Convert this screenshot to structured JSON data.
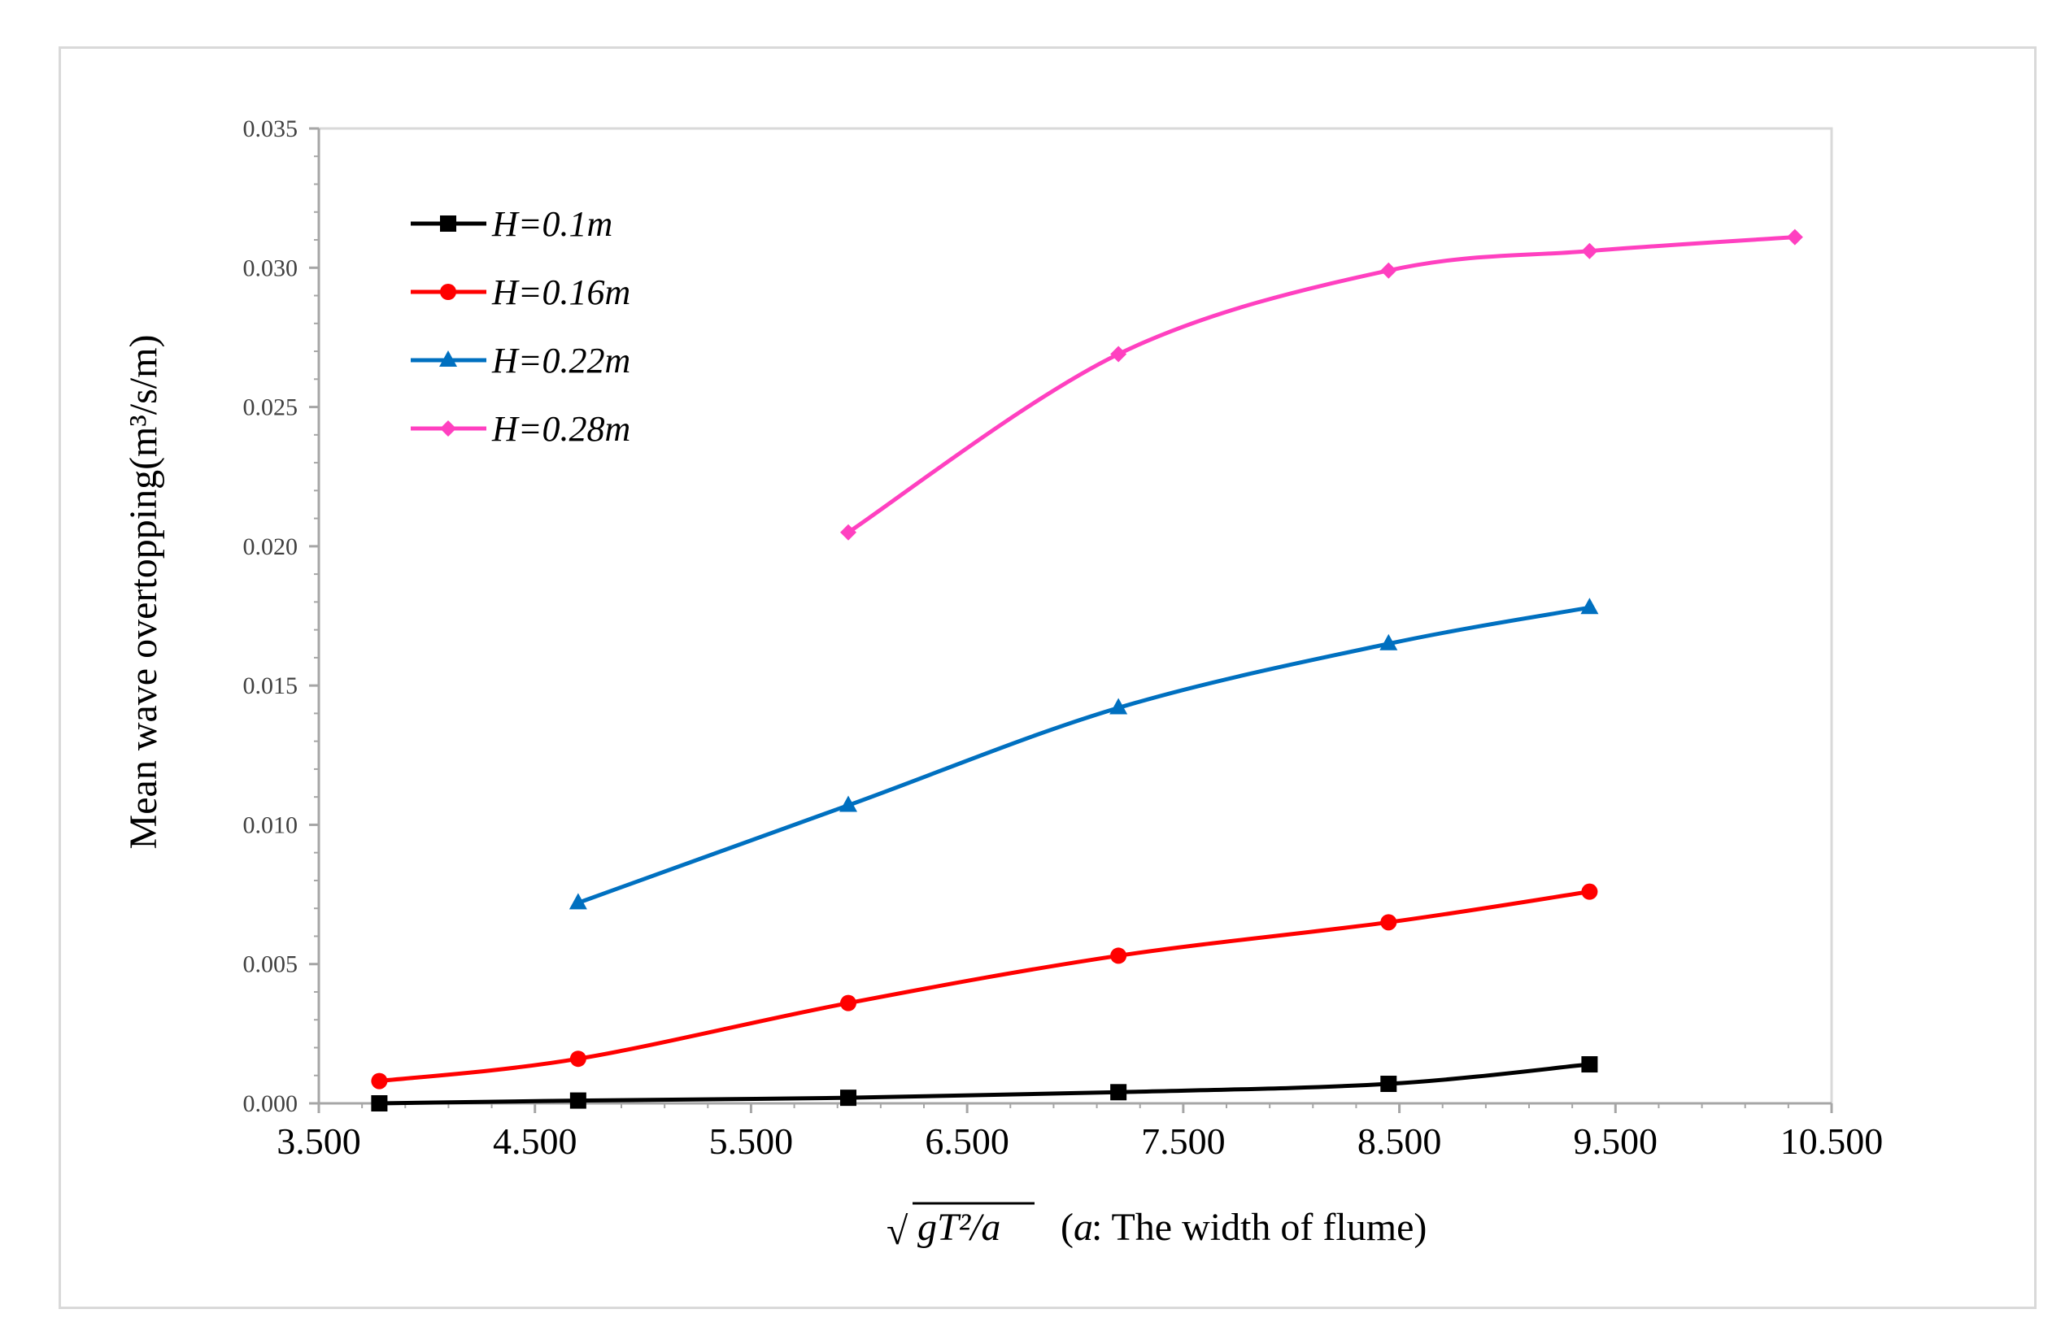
{
  "chart_data": {
    "type": "line",
    "title": "",
    "xlabel_prefix": "√",
    "xlabel_formula": "gT²/a",
    "xlabel_note_var": "a",
    "xlabel_note_text": ": The width of flume)",
    "xlabel_note_open": "(",
    "ylabel": "Mean wave overtopping(m³/s/m)",
    "xlim": [
      3.5,
      10.5
    ],
    "ylim": [
      0,
      0.035
    ],
    "xticks": [
      3.5,
      4.5,
      5.5,
      6.5,
      7.5,
      8.5,
      9.5,
      10.5
    ],
    "xtick_labels": [
      "3.500",
      "4.500",
      "5.500",
      "6.500",
      "7.500",
      "8.500",
      "9.500",
      "10.500"
    ],
    "yticks": [
      0,
      0.005,
      0.01,
      0.015,
      0.02,
      0.025,
      0.03,
      0.035
    ],
    "ytick_labels": [
      "0.000",
      "0.005",
      "0.010",
      "0.015",
      "0.020",
      "0.025",
      "0.030",
      "0.035"
    ],
    "grid": false,
    "legend_position": "top-left",
    "series": [
      {
        "name": "H=0.1m",
        "color": "#000000",
        "marker": "square",
        "x": [
          3.78,
          4.7,
          5.95,
          7.2,
          8.45,
          9.38
        ],
        "y": [
          0.0,
          0.0001,
          0.0002,
          0.0004,
          0.0007,
          0.0014
        ]
      },
      {
        "name": "H=0.16m",
        "color": "#ff0000",
        "marker": "circle",
        "x": [
          3.78,
          4.7,
          5.95,
          7.2,
          8.45,
          9.38
        ],
        "y": [
          0.0008,
          0.0016,
          0.0036,
          0.0053,
          0.0065,
          0.0076
        ]
      },
      {
        "name": "H=0.22m",
        "color": "#0070c0",
        "marker": "triangle",
        "x": [
          4.7,
          5.95,
          7.2,
          8.45,
          9.38
        ],
        "y": [
          0.0072,
          0.0107,
          0.0142,
          0.0165,
          0.0178
        ]
      },
      {
        "name": "H=0.28m",
        "color": "#ff40c0",
        "marker": "diamond",
        "x": [
          5.95,
          7.2,
          8.45,
          9.38,
          10.33
        ],
        "y": [
          0.0205,
          0.0269,
          0.0299,
          0.0306,
          0.0311
        ]
      }
    ]
  }
}
